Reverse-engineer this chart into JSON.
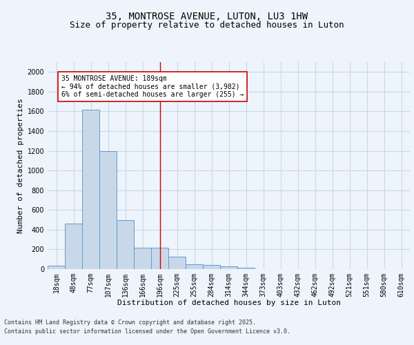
{
  "title_line1": "35, MONTROSE AVENUE, LUTON, LU3 1HW",
  "title_line2": "Size of property relative to detached houses in Luton",
  "xlabel": "Distribution of detached houses by size in Luton",
  "ylabel": "Number of detached properties",
  "categories": [
    "18sqm",
    "48sqm",
    "77sqm",
    "107sqm",
    "136sqm",
    "166sqm",
    "196sqm",
    "225sqm",
    "255sqm",
    "284sqm",
    "314sqm",
    "344sqm",
    "373sqm",
    "403sqm",
    "432sqm",
    "462sqm",
    "492sqm",
    "521sqm",
    "551sqm",
    "580sqm",
    "610sqm"
  ],
  "values": [
    35,
    460,
    1620,
    1200,
    500,
    220,
    220,
    125,
    50,
    40,
    25,
    15,
    0,
    0,
    0,
    0,
    0,
    0,
    0,
    0,
    0
  ],
  "bar_color": "#c8d8e8",
  "bar_edge_color": "#6699cc",
  "vline_x": 6,
  "vline_color": "#cc0000",
  "annotation_line1": "35 MONTROSE AVENUE: 189sqm",
  "annotation_line2": "← 94% of detached houses are smaller (3,982)",
  "annotation_line3": "6% of semi-detached houses are larger (255) →",
  "annotation_box_color": "#ffffff",
  "annotation_box_edge_color": "#cc0000",
  "ylim": [
    0,
    2100
  ],
  "yticks": [
    0,
    200,
    400,
    600,
    800,
    1000,
    1200,
    1400,
    1600,
    1800,
    2000
  ],
  "grid_color": "#c8d8e8",
  "background_color": "#eef4fb",
  "footer_line1": "Contains HM Land Registry data © Crown copyright and database right 2025.",
  "footer_line2": "Contains public sector information licensed under the Open Government Licence v3.0.",
  "title_fontsize": 10,
  "subtitle_fontsize": 9,
  "axis_label_fontsize": 8,
  "tick_fontsize": 7,
  "annotation_fontsize": 7,
  "footer_fontsize": 6
}
